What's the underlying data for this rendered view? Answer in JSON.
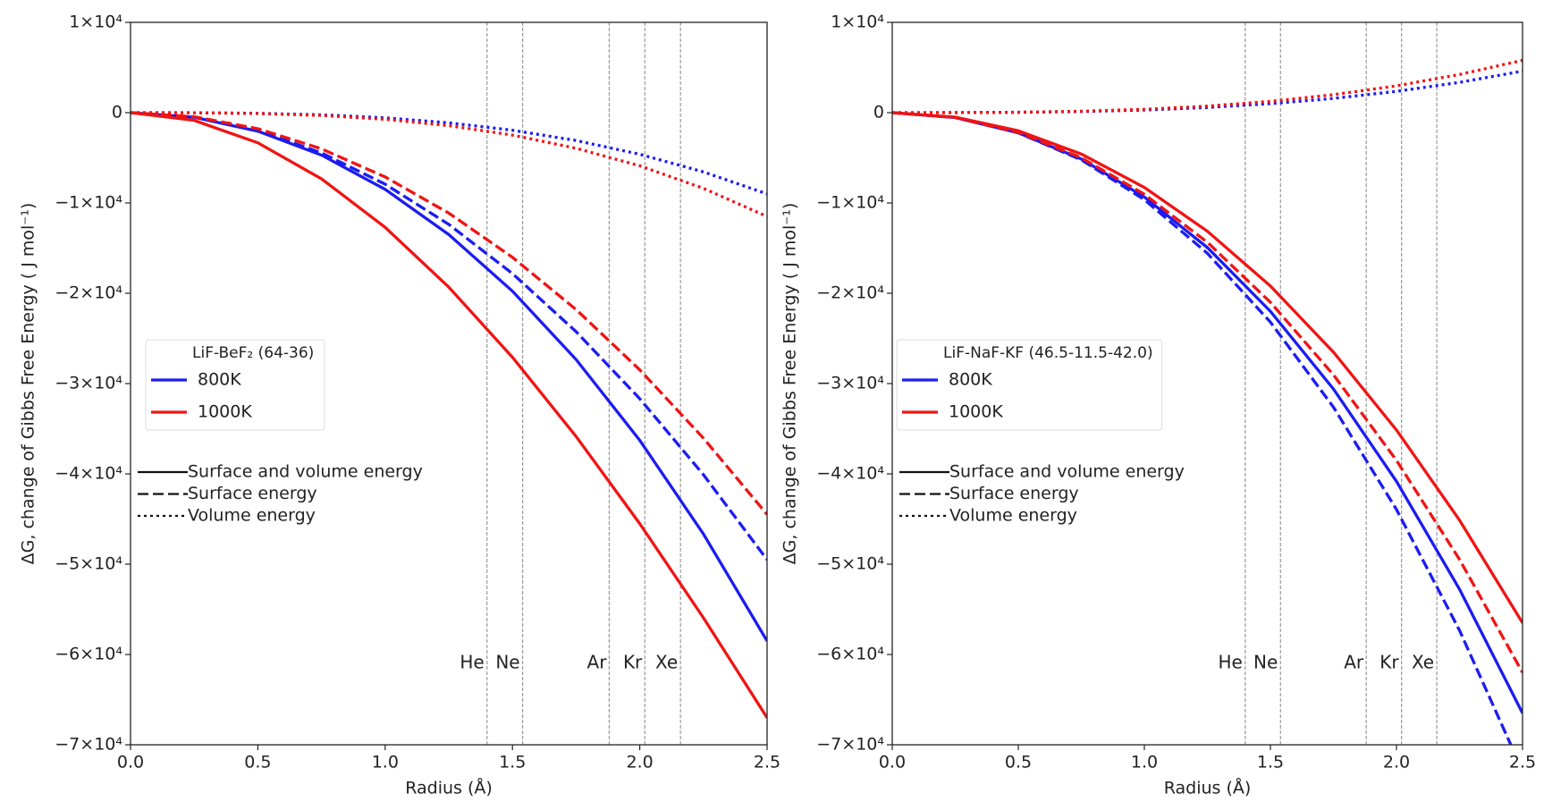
{
  "chart_data": [
    {
      "type": "line",
      "legend_title": "LiF-BeF₂ (64-36)",
      "xlabel": "Radius (Å)",
      "ylabel": "ΔG, change of Gibbs Free Energy ( J mol⁻¹)",
      "x": [
        0,
        0.25,
        0.5,
        0.75,
        1,
        1.25,
        1.5,
        1.75,
        2,
        2.25,
        2.5
      ],
      "xlim": [
        0,
        2.5
      ],
      "xticks": [
        {
          "value": 0,
          "label": "0.0"
        },
        0.5,
        {
          "value": 1,
          "label": "1.0"
        },
        1.5,
        {
          "value": 2,
          "label": "2.0"
        },
        2.5
      ],
      "ylim": [
        -70000,
        10000
      ],
      "yticks": [
        {
          "value": 10000,
          "label": "1×10⁴"
        },
        0,
        {
          "value": -10000,
          "label": "−1×10⁴"
        },
        {
          "value": -20000,
          "label": "−2×10⁴"
        },
        {
          "value": -30000,
          "label": "−3×10⁴"
        },
        {
          "value": -40000,
          "label": "−4×10⁴"
        },
        {
          "value": -50000,
          "label": "−5×10⁴"
        },
        {
          "value": -60000,
          "label": "−6×10⁴"
        },
        {
          "value": -70000,
          "label": "−7×10⁴"
        }
      ],
      "line_styles": [
        {
          "name": "Surface and volume energy",
          "dash": "solid"
        },
        {
          "name": "Surface energy",
          "dash": "dashed"
        },
        {
          "name": "Volume energy",
          "dash": "dotted"
        }
      ],
      "series": [
        {
          "name": "800K",
          "color": "#1c1cf0",
          "lines": {
            "solid": [
              0,
              -504,
              -2052,
              -4698,
              -8496,
              -13500,
              -19764,
              -27342,
              -36288,
              -46656,
              -58500
            ],
            "dashed": [
              0,
              -495,
              -1980,
              -4455,
              -7920,
              -12375,
              -17820,
              -24255,
              -31680,
              -40095,
              -49500
            ],
            "dotted": [
              0,
              -9,
              -72,
              -243,
              -576,
              -1125,
              -1944,
              -3087,
              -4608,
              -6561,
              -9000
            ]
          }
        },
        {
          "name": "1000K",
          "color": "#f01414",
          "lines": {
            "solid": [
              0,
              -855,
              -3340,
              -7329,
              -12700,
              -19328,
              -27090,
              -35862,
              -45520,
              -55940,
              -67000
            ],
            "dashed": [
              0,
              -445,
              -1780,
              -4005,
              -7120,
              -11125,
              -16020,
              -21805,
              -28480,
              -36045,
              -44500
            ],
            "dotted": [
              0,
              -12,
              -92,
              -311,
              -736,
              -1438,
              -2484,
              -3945,
              -5888,
              -8384,
              -11500
            ]
          }
        }
      ],
      "markers": [
        {
          "label": "He",
          "x": 1.4
        },
        {
          "label": "Ne",
          "x": 1.54
        },
        {
          "label": "Ar",
          "x": 1.88
        },
        {
          "label": "Kr",
          "x": 2.02
        },
        {
          "label": "Xe",
          "x": 2.16
        }
      ]
    },
    {
      "type": "line",
      "legend_title": "LiF-NaF-KF (46.5-11.5-42.0)",
      "xlabel": "Radius (Å)",
      "ylabel": "ΔG, change of Gibbs Free Energy ( J mol⁻¹)",
      "x": [
        0,
        0.25,
        0.5,
        0.75,
        1,
        1.25,
        1.5,
        1.75,
        2,
        2.25,
        2.5
      ],
      "xlim": [
        0,
        2.5
      ],
      "xticks": [
        {
          "value": 0,
          "label": "0.0"
        },
        0.5,
        {
          "value": 1,
          "label": "1.0"
        },
        1.5,
        {
          "value": 2,
          "label": "2.0"
        },
        2.5
      ],
      "ylim": [
        -70000,
        10000
      ],
      "yticks": [
        {
          "value": 10000,
          "label": "1×10⁴"
        },
        0,
        {
          "value": -10000,
          "label": "−1×10⁴"
        },
        {
          "value": -20000,
          "label": "−2×10⁴"
        },
        {
          "value": -30000,
          "label": "−3×10⁴"
        },
        {
          "value": -40000,
          "label": "−4×10⁴"
        },
        {
          "value": -50000,
          "label": "−5×10⁴"
        },
        {
          "value": -60000,
          "label": "−6×10⁴"
        },
        {
          "value": -70000,
          "label": "−7×10⁴"
        }
      ],
      "line_styles": [
        {
          "name": "Surface and volume energy",
          "dash": "solid"
        },
        {
          "name": "Surface energy",
          "dash": "dashed"
        },
        {
          "name": "Volume energy",
          "dash": "dotted"
        }
      ],
      "series": [
        {
          "name": "800K",
          "color": "#1c1cf0",
          "lines": {
            "solid": [
              0,
              -543,
              -2229,
              -5137,
              -9347,
              -14942,
              -22000,
              -30605,
              -40836,
              -52774,
              -66500
            ],
            "dashed": [
              0,
              -539,
              -2239,
              -5229,
              -9634,
              -15582,
              -23198,
              -32612,
              -43948,
              -57334,
              -72897
            ],
            "dotted": [
              0,
              5,
              37,
              124,
              294,
              575,
              994,
              1578,
              2355,
              3353,
              4600
            ]
          }
        },
        {
          "name": "1000K",
          "color": "#f01414",
          "lines": {
            "solid": [
              0,
              -494,
              -2006,
              -4586,
              -8280,
              -13135,
              -19200,
              -26522,
              -35148,
              -45126,
              -56503
            ],
            "dashed": [
              0,
              -537,
              -2186,
              -5003,
              -9040,
              -14354,
              -21000,
              -29033,
              -38508,
              -49479,
              -62003
            ],
            "dotted": [
              0,
              6,
              46,
              157,
              371,
              725,
              1252,
              1988,
              2968,
              4226,
              5797
            ]
          }
        }
      ],
      "markers": [
        {
          "label": "He",
          "x": 1.4
        },
        {
          "label": "Ne",
          "x": 1.54
        },
        {
          "label": "Ar",
          "x": 1.88
        },
        {
          "label": "Kr",
          "x": 2.02
        },
        {
          "label": "Xe",
          "x": 2.16
        }
      ]
    }
  ]
}
